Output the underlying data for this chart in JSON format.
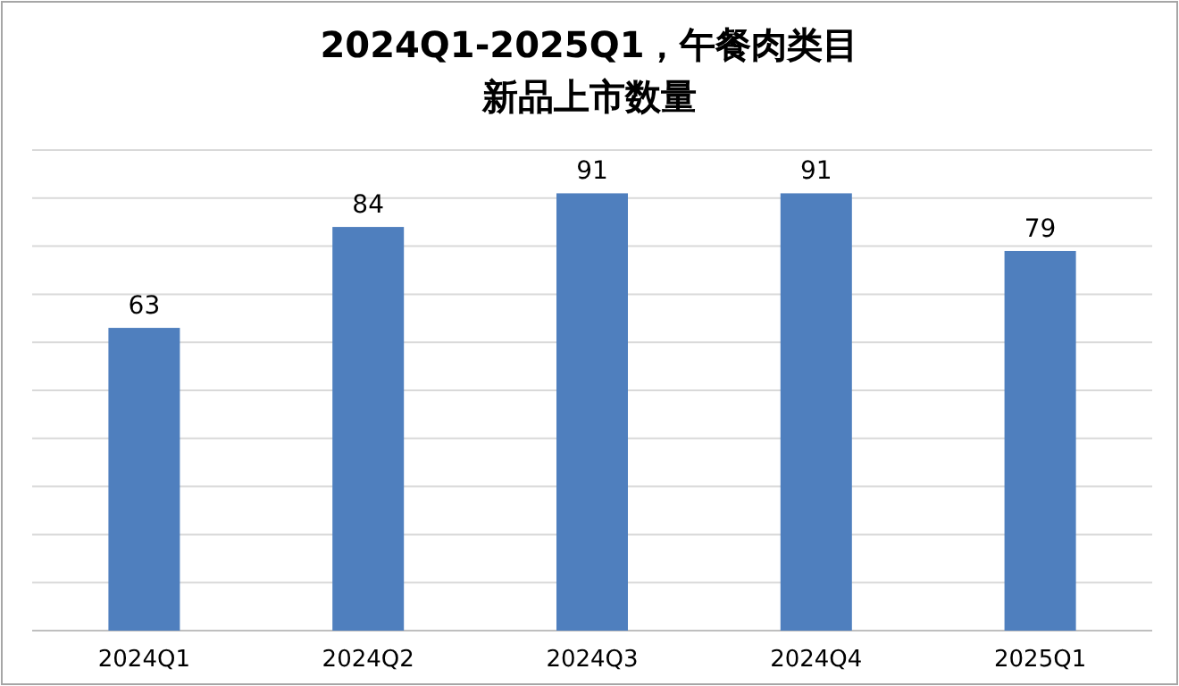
{
  "chart_data": {
    "type": "bar",
    "title": "2024Q1-2025Q1，午餐肉类目",
    "subtitle": "新品上市数量",
    "categories": [
      "2024Q1",
      "2024Q2",
      "2024Q3",
      "2024Q4",
      "2025Q1"
    ],
    "values": [
      63,
      84,
      91,
      91,
      79
    ],
    "color": "#4f7fbe",
    "ylim": [
      0,
      100
    ],
    "yticks": [
      {
        "value": 0,
        "label": null
      },
      {
        "value": 10,
        "label": null
      },
      {
        "value": 20,
        "label": null
      },
      {
        "value": 30,
        "label": null
      },
      {
        "value": 40,
        "label": null
      },
      {
        "value": 50,
        "label": null
      },
      {
        "value": 60,
        "label": null
      },
      {
        "value": 70,
        "label": null
      },
      {
        "value": 80,
        "label": null
      },
      {
        "value": 90,
        "label": null
      },
      {
        "value": 100,
        "label": null
      }
    ],
    "grid": "y",
    "tick_labels": "x",
    "data_labels": true
  }
}
